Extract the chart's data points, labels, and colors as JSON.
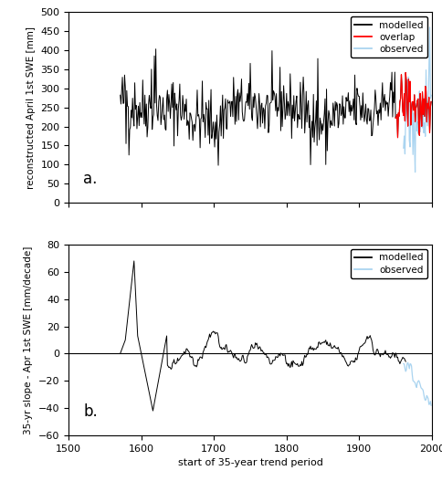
{
  "xlim": [
    1500,
    2000
  ],
  "panel_a": {
    "ylim": [
      0,
      500
    ],
    "yticks": [
      0,
      50,
      100,
      150,
      200,
      250,
      300,
      350,
      400,
      450,
      500
    ],
    "ylabel": "reconstructed April 1st SWE [mm]",
    "modelled_start": 1571,
    "modelled_end": 1999,
    "overlap_start": 1950,
    "overlap_end": 1999,
    "observed_start": 1961,
    "observed_end": 1999,
    "label_a": "a.",
    "legend_entries": [
      "modelled",
      "overlap",
      "observed"
    ],
    "legend_colors": [
      "black",
      "red",
      "lightblue"
    ]
  },
  "panel_b": {
    "ylim": [
      -60,
      80
    ],
    "yticks": [
      -60,
      -40,
      -20,
      0,
      20,
      40,
      60,
      80
    ],
    "ylabel": "35-yr slope - Apr 1st SWE [mm/decade]",
    "xlabel": "start of 35-year trend period",
    "modelled_start": 1571,
    "modelled_end": 1964,
    "observed_start": 1961,
    "observed_end": 1999,
    "label_b": "b.",
    "legend_entries": [
      "modelled",
      "observed"
    ],
    "legend_colors": [
      "black",
      "lightblue"
    ]
  },
  "xticks": [
    1500,
    1600,
    1700,
    1800,
    1900,
    2000
  ],
  "background_color": "white",
  "line_color_modelled": "black",
  "line_color_overlap": "red",
  "line_color_observed": "#aad4f0",
  "line_width": 0.7,
  "seed": 42
}
